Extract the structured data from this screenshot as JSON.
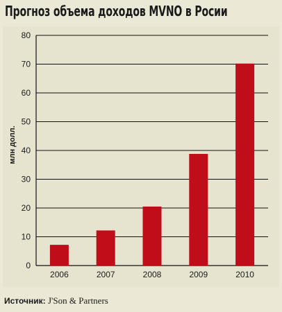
{
  "title": "Прогноз объема доходов MVNO в Росии",
  "source": {
    "label": "Источник:",
    "text": "J'Son & Partners"
  },
  "chart_data": {
    "type": "bar",
    "categories": [
      "2006",
      "2007",
      "2008",
      "2009",
      "2010"
    ],
    "values": [
      7.2,
      12.2,
      20.5,
      38.8,
      70.2
    ],
    "title": "Прогноз объема доходов MVNO в Росии",
    "xlabel": "",
    "ylabel": "млн долл.",
    "ylim": [
      0,
      80
    ],
    "yticks": [
      0,
      10,
      20,
      30,
      40,
      50,
      60,
      70,
      80
    ],
    "grid": true,
    "bar_color": "#c00d1a",
    "grid_color": "#111111"
  }
}
